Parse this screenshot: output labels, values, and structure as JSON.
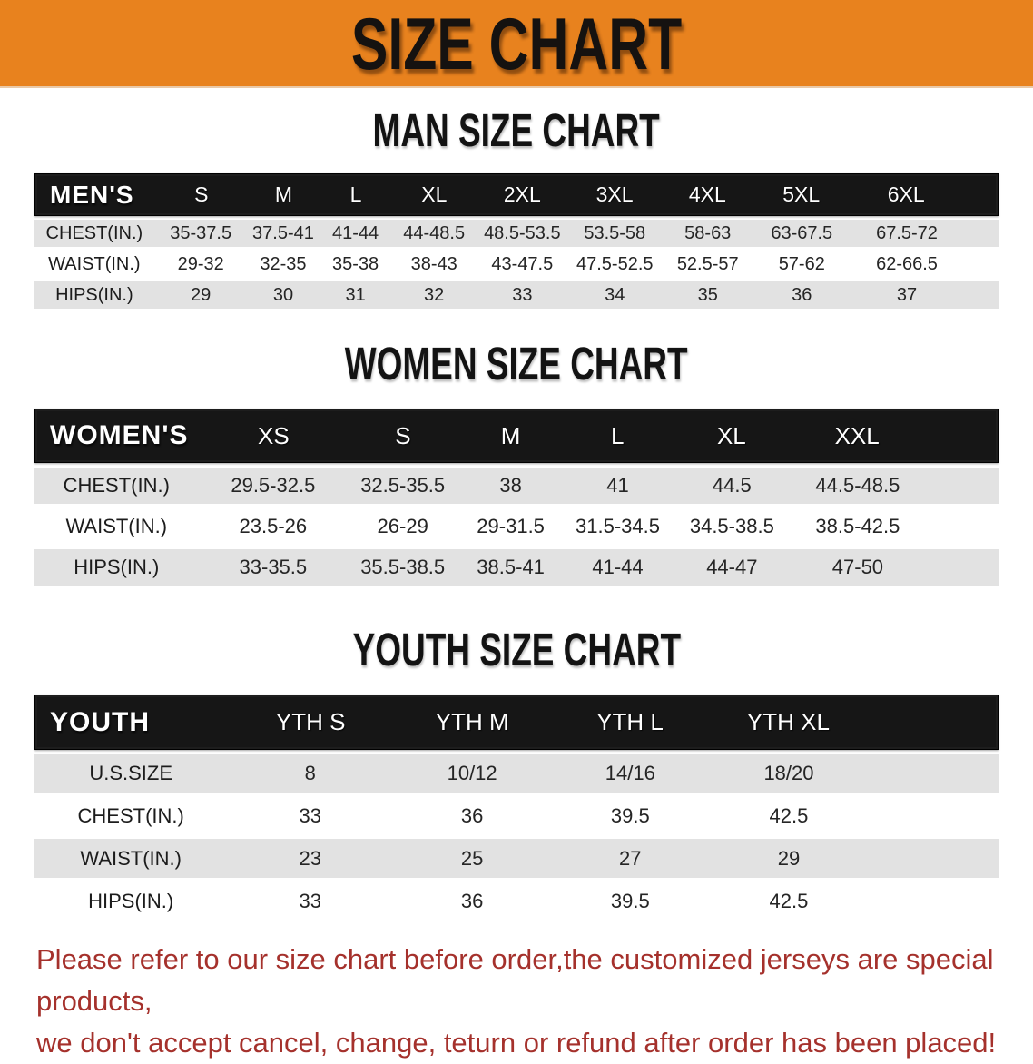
{
  "banner": {
    "title": "SIZE CHART"
  },
  "sections": [
    {
      "heading": "MAN SIZE CHART",
      "table": {
        "header_label": "MEN'S",
        "sizes": [
          "S",
          "M",
          "L",
          "XL",
          "2XL",
          "3XL",
          "4XL",
          "5XL",
          "6XL"
        ],
        "rows": [
          {
            "label": "CHEST(IN.)",
            "values": [
              "35-37.5",
              "37.5-41",
              "41-44",
              "44-48.5",
              "48.5-53.5",
              "53.5-58",
              "58-63",
              "63-67.5",
              "67.5-72"
            ]
          },
          {
            "label": "WAIST(IN.)",
            "values": [
              "29-32",
              "32-35",
              "35-38",
              "38-43",
              "43-47.5",
              "47.5-52.5",
              "52.5-57",
              "57-62",
              "62-66.5"
            ]
          },
          {
            "label": "HIPS(IN.)",
            "values": [
              "29",
              "30",
              "31",
              "32",
              "33",
              "34",
              "35",
              "36",
              "37"
            ]
          }
        ]
      }
    },
    {
      "heading": "WOMEN SIZE CHART",
      "table": {
        "header_label": "WOMEN'S",
        "sizes": [
          "XS",
          "S",
          "M",
          "L",
          "XL",
          "XXL"
        ],
        "rows": [
          {
            "label": "CHEST(IN.)",
            "values": [
              "29.5-32.5",
              "32.5-35.5",
              "38",
              "41",
              "44.5",
              "44.5-48.5"
            ]
          },
          {
            "label": "WAIST(IN.)",
            "values": [
              "23.5-26",
              "26-29",
              "29-31.5",
              "31.5-34.5",
              "34.5-38.5",
              "38.5-42.5"
            ]
          },
          {
            "label": "HIPS(IN.)",
            "values": [
              "33-35.5",
              "35.5-38.5",
              "38.5-41",
              "41-44",
              "44-47",
              "47-50"
            ]
          }
        ]
      }
    },
    {
      "heading": "YOUTH SIZE CHART",
      "table": {
        "header_label": "YOUTH",
        "sizes": [
          "YTH S",
          "YTH M",
          "YTH L",
          "YTH XL"
        ],
        "rows": [
          {
            "label": "U.S.SIZE",
            "values": [
              "8",
              "10/12",
              "14/16",
              "18/20"
            ]
          },
          {
            "label": "CHEST(IN.)",
            "values": [
              "33",
              "36",
              "39.5",
              "42.5"
            ]
          },
          {
            "label": "WAIST(IN.)",
            "values": [
              "23",
              "25",
              "27",
              "29"
            ]
          },
          {
            "label": "HIPS(IN.)",
            "values": [
              "33",
              "36",
              "39.5",
              "42.5"
            ]
          }
        ]
      }
    }
  ],
  "disclaimer": {
    "line1": "Please refer to our size chart before order,the customized jerseys are special products,",
    "line2": "we don't accept cancel, change, teturn or refund after order has been placed!"
  },
  "colors": {
    "banner_bg": "#E8821E",
    "table_header_bg": "#161616",
    "row_stripe": "#E2E2E2",
    "disclaimer_text": "#A5312C"
  }
}
